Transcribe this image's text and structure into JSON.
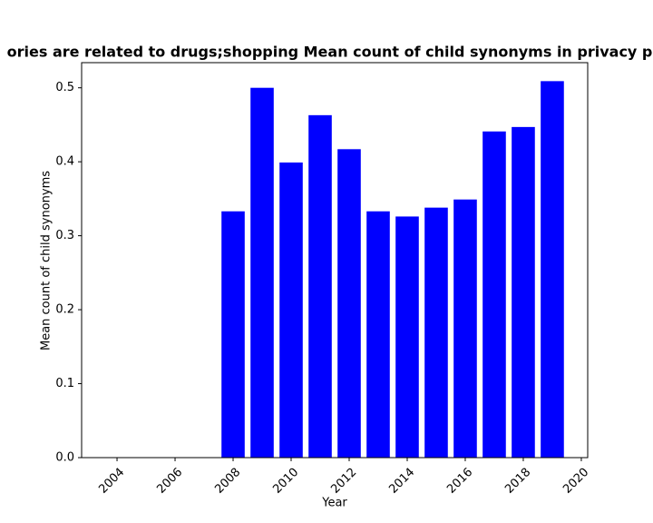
{
  "chart_data": {
    "type": "bar",
    "title": "ories are related to drugs;shopping Mean count of child synonyms in privacy po",
    "x_label": "Year",
    "y_label": "Mean count of child synonyms",
    "x": [
      2008,
      2009,
      2010,
      2011,
      2012,
      2013,
      2014,
      2015,
      2016,
      2017,
      2018,
      2019
    ],
    "values": [
      0.333,
      0.5,
      0.399,
      0.463,
      0.417,
      0.333,
      0.326,
      0.338,
      0.349,
      0.441,
      0.447,
      0.509
    ],
    "color": "#0000ff",
    "xlim": [
      2002.78,
      2020.22
    ],
    "xticks": [
      2004,
      2006,
      2008,
      2010,
      2012,
      2014,
      2016,
      2018,
      2020
    ],
    "ylim": [
      0,
      0.534
    ],
    "yticks": [
      {
        "value": 0,
        "label": "0.0"
      },
      0.1,
      0.2,
      0.3,
      0.4,
      0.5
    ],
    "grid": false
  }
}
